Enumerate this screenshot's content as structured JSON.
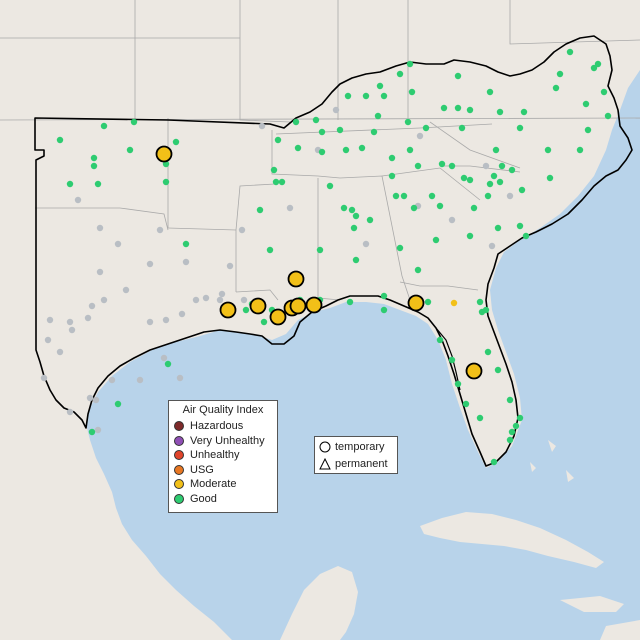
{
  "legend": {
    "title": "Air Quality Index",
    "categories": [
      {
        "label": "Hazardous",
        "color": "#7e2a2a"
      },
      {
        "label": "Very Unhealthy",
        "color": "#8f4fb5"
      },
      {
        "label": "Unhealthy",
        "color": "#e0442b"
      },
      {
        "label": "USG",
        "color": "#e87722"
      },
      {
        "label": "Moderate",
        "color": "#f2c018"
      },
      {
        "label": "Good",
        "color": "#2ecc71"
      }
    ]
  },
  "shape_legend": {
    "temporary": "temporary",
    "permanent": "permanent"
  },
  "colors": {
    "ocean": "#b8d3ea",
    "land": "#ede9e3",
    "border": "#000000",
    "no_data": "#b9bec4"
  }
}
